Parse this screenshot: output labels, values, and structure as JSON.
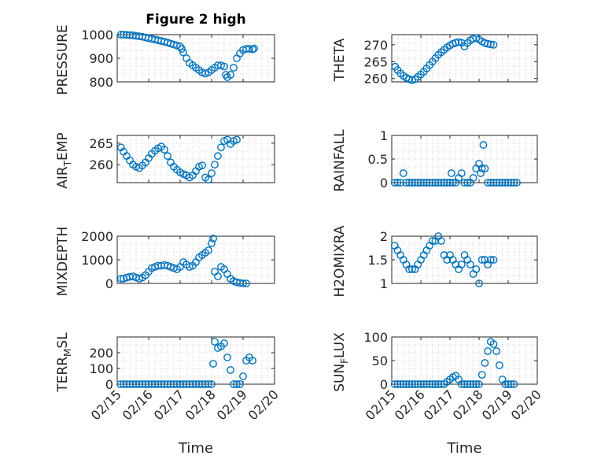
{
  "title": "Figure 2 high",
  "colors": {
    "marker": "#0072bd",
    "axis": "#262626",
    "grid": "#bdbdbd",
    "background": "#ffffff"
  },
  "chart_data": [
    {
      "type": "scatter",
      "ylabel": "PRESSURE",
      "title": "Figure 2 high",
      "xlim": [
        0,
        5
      ],
      "ylim": [
        800,
        1000
      ],
      "yticks": [
        800,
        900,
        1000
      ],
      "yticklabels": [
        "800",
        "900",
        "1000"
      ],
      "xticklabels": [],
      "xlabel": "",
      "grid": true,
      "points": [
        [
          0.12,
          1000
        ],
        [
          0.2,
          1000
        ],
        [
          0.3,
          999
        ],
        [
          0.4,
          998
        ],
        [
          0.5,
          997
        ],
        [
          0.6,
          995
        ],
        [
          0.7,
          993
        ],
        [
          0.8,
          991
        ],
        [
          0.9,
          988
        ],
        [
          1.0,
          985
        ],
        [
          1.1,
          982
        ],
        [
          1.2,
          979
        ],
        [
          1.3,
          976
        ],
        [
          1.4,
          973
        ],
        [
          1.5,
          970
        ],
        [
          1.6,
          966
        ],
        [
          1.7,
          962
        ],
        [
          1.8,
          958
        ],
        [
          1.9,
          954
        ],
        [
          2.0,
          950
        ],
        [
          2.05,
          940
        ],
        [
          2.1,
          925
        ],
        [
          2.2,
          900
        ],
        [
          2.3,
          880
        ],
        [
          2.4,
          870
        ],
        [
          2.5,
          860
        ],
        [
          2.6,
          850
        ],
        [
          2.7,
          840
        ],
        [
          2.8,
          835
        ],
        [
          2.9,
          840
        ],
        [
          3.0,
          850
        ],
        [
          3.1,
          860
        ],
        [
          3.2,
          870
        ],
        [
          3.3,
          870
        ],
        [
          3.4,
          865
        ],
        [
          3.45,
          830
        ],
        [
          3.5,
          820
        ],
        [
          3.6,
          830
        ],
        [
          3.7,
          860
        ],
        [
          3.8,
          900
        ],
        [
          3.9,
          920
        ],
        [
          4.0,
          935
        ],
        [
          4.1,
          940
        ],
        [
          4.2,
          940
        ],
        [
          4.3,
          938
        ],
        [
          4.35,
          941
        ]
      ]
    },
    {
      "type": "scatter",
      "ylabel": "THETA",
      "xlim": [
        0,
        5
      ],
      "ylim": [
        259,
        273
      ],
      "yticks": [
        260,
        265,
        270
      ],
      "yticklabels": [
        "260",
        "265",
        "270"
      ],
      "xticklabels": [],
      "xlabel": "",
      "grid": true,
      "points": [
        [
          0.12,
          263.5
        ],
        [
          0.2,
          262.5
        ],
        [
          0.3,
          261.5
        ],
        [
          0.4,
          260.8
        ],
        [
          0.5,
          260.2
        ],
        [
          0.6,
          259.8
        ],
        [
          0.7,
          259.5
        ],
        [
          0.8,
          259.8
        ],
        [
          0.9,
          260.5
        ],
        [
          1.0,
          261.2
        ],
        [
          1.1,
          262
        ],
        [
          1.2,
          263
        ],
        [
          1.3,
          264
        ],
        [
          1.4,
          265
        ],
        [
          1.5,
          266
        ],
        [
          1.6,
          267
        ],
        [
          1.7,
          267.8
        ],
        [
          1.8,
          268.5
        ],
        [
          1.9,
          269.2
        ],
        [
          2.0,
          269.8
        ],
        [
          2.1,
          270.3
        ],
        [
          2.2,
          270.6
        ],
        [
          2.3,
          270.8
        ],
        [
          2.4,
          270.6
        ],
        [
          2.5,
          269.5
        ],
        [
          2.6,
          270.5
        ],
        [
          2.7,
          271.3
        ],
        [
          2.8,
          271.8
        ],
        [
          2.9,
          272
        ],
        [
          3.0,
          271.6
        ],
        [
          3.1,
          271
        ],
        [
          3.2,
          270.5
        ],
        [
          3.3,
          270.3
        ],
        [
          3.4,
          270.1
        ],
        [
          3.5,
          270
        ]
      ]
    },
    {
      "type": "scatter",
      "ylabel": "AIR_TEMP",
      "xlim": [
        0,
        5
      ],
      "ylim": [
        255.8,
        266.8
      ],
      "yticks": [
        260,
        265
      ],
      "yticklabels": [
        "260",
        "265"
      ],
      "xticklabels": [],
      "xlabel": "",
      "grid": true,
      "points": [
        [
          0.12,
          264
        ],
        [
          0.2,
          263
        ],
        [
          0.3,
          262
        ],
        [
          0.4,
          261
        ],
        [
          0.5,
          260
        ],
        [
          0.6,
          259.5
        ],
        [
          0.7,
          259.2
        ],
        [
          0.8,
          259.8
        ],
        [
          0.9,
          260.5
        ],
        [
          1.0,
          261.5
        ],
        [
          1.1,
          262.5
        ],
        [
          1.2,
          263.2
        ],
        [
          1.3,
          263.8
        ],
        [
          1.4,
          264.2
        ],
        [
          1.5,
          263.5
        ],
        [
          1.6,
          262
        ],
        [
          1.7,
          260.5
        ],
        [
          1.8,
          259.5
        ],
        [
          1.9,
          258.8
        ],
        [
          2.0,
          258.2
        ],
        [
          2.1,
          257.8
        ],
        [
          2.2,
          257.5
        ],
        [
          2.3,
          257
        ],
        [
          2.4,
          257.5
        ],
        [
          2.5,
          258.5
        ],
        [
          2.6,
          259.5
        ],
        [
          2.7,
          259.8
        ],
        [
          2.8,
          257
        ],
        [
          2.9,
          256.5
        ],
        [
          3.0,
          258
        ],
        [
          3.1,
          260
        ],
        [
          3.2,
          262
        ],
        [
          3.3,
          264
        ],
        [
          3.4,
          265.5
        ],
        [
          3.5,
          265.8
        ],
        [
          3.6,
          264.8
        ],
        [
          3.7,
          265.5
        ],
        [
          3.8,
          265.8
        ]
      ]
    },
    {
      "type": "scatter",
      "ylabel": "RAINFALL",
      "xlim": [
        0,
        5
      ],
      "ylim": [
        0,
        1
      ],
      "yticks": [
        0,
        0.5,
        1
      ],
      "yticklabels": [
        "0",
        "0.5",
        "1"
      ],
      "xticklabels": [],
      "xlabel": "",
      "grid": true,
      "points": [
        [
          0.1,
          0
        ],
        [
          0.2,
          0
        ],
        [
          0.3,
          0
        ],
        [
          0.4,
          0.2
        ],
        [
          0.5,
          0
        ],
        [
          0.6,
          0
        ],
        [
          0.7,
          0
        ],
        [
          0.8,
          0
        ],
        [
          0.9,
          0
        ],
        [
          1.0,
          0
        ],
        [
          1.1,
          0
        ],
        [
          1.2,
          0
        ],
        [
          1.3,
          0
        ],
        [
          1.4,
          0
        ],
        [
          1.5,
          0
        ],
        [
          1.6,
          0
        ],
        [
          1.7,
          0
        ],
        [
          1.8,
          0
        ],
        [
          1.9,
          0
        ],
        [
          2.0,
          0
        ],
        [
          2.05,
          0.2
        ],
        [
          2.1,
          0
        ],
        [
          2.2,
          0
        ],
        [
          2.3,
          0.1
        ],
        [
          2.4,
          0.2
        ],
        [
          2.5,
          0
        ],
        [
          2.6,
          0
        ],
        [
          2.7,
          0
        ],
        [
          2.8,
          0.1
        ],
        [
          2.9,
          0.3
        ],
        [
          3.0,
          0.4
        ],
        [
          3.05,
          0.2
        ],
        [
          3.1,
          0.3
        ],
        [
          3.15,
          0.8
        ],
        [
          3.2,
          0.3
        ],
        [
          3.3,
          0
        ],
        [
          3.4,
          0
        ],
        [
          3.5,
          0
        ],
        [
          3.6,
          0
        ],
        [
          3.7,
          0
        ],
        [
          3.8,
          0
        ],
        [
          3.9,
          0
        ],
        [
          4.0,
          0
        ],
        [
          4.1,
          0
        ],
        [
          4.2,
          0
        ],
        [
          4.3,
          0
        ]
      ]
    },
    {
      "type": "scatter",
      "ylabel": "MIXDEPTH",
      "xlim": [
        0,
        5
      ],
      "ylim": [
        0,
        2000
      ],
      "yticks": [
        0,
        1000,
        2000
      ],
      "yticklabels": [
        "0",
        "1000",
        "2000"
      ],
      "xticklabels": [],
      "xlabel": "",
      "grid": true,
      "points": [
        [
          0.12,
          200
        ],
        [
          0.2,
          200
        ],
        [
          0.3,
          250
        ],
        [
          0.4,
          280
        ],
        [
          0.5,
          300
        ],
        [
          0.6,
          250
        ],
        [
          0.7,
          200
        ],
        [
          0.8,
          250
        ],
        [
          0.9,
          350
        ],
        [
          1.0,
          500
        ],
        [
          1.1,
          650
        ],
        [
          1.2,
          700
        ],
        [
          1.3,
          750
        ],
        [
          1.4,
          750
        ],
        [
          1.5,
          780
        ],
        [
          1.6,
          750
        ],
        [
          1.7,
          700
        ],
        [
          1.8,
          650
        ],
        [
          1.9,
          600
        ],
        [
          2.0,
          700
        ],
        [
          2.1,
          900
        ],
        [
          2.2,
          800
        ],
        [
          2.3,
          700
        ],
        [
          2.4,
          750
        ],
        [
          2.5,
          900
        ],
        [
          2.6,
          1100
        ],
        [
          2.7,
          1200
        ],
        [
          2.8,
          1300
        ],
        [
          2.9,
          1400
        ],
        [
          3.0,
          1700
        ],
        [
          3.05,
          1900
        ],
        [
          3.1,
          500
        ],
        [
          3.2,
          300
        ],
        [
          3.3,
          700
        ],
        [
          3.4,
          600
        ],
        [
          3.5,
          400
        ],
        [
          3.6,
          200
        ],
        [
          3.7,
          100
        ],
        [
          3.8,
          50
        ],
        [
          3.9,
          20
        ],
        [
          4.0,
          0
        ],
        [
          4.1,
          0
        ]
      ]
    },
    {
      "type": "scatter",
      "ylabel": "H2OMIXRA",
      "xlim": [
        0,
        5
      ],
      "ylim": [
        1,
        2
      ],
      "yticks": [
        1,
        1.5,
        2
      ],
      "yticklabels": [
        "1",
        "1.5",
        "2"
      ],
      "xticklabels": [],
      "xlabel": "",
      "grid": true,
      "points": [
        [
          0.1,
          1.8
        ],
        [
          0.2,
          1.7
        ],
        [
          0.3,
          1.6
        ],
        [
          0.4,
          1.5
        ],
        [
          0.5,
          1.4
        ],
        [
          0.6,
          1.3
        ],
        [
          0.7,
          1.3
        ],
        [
          0.8,
          1.3
        ],
        [
          0.9,
          1.4
        ],
        [
          1.0,
          1.5
        ],
        [
          1.1,
          1.6
        ],
        [
          1.2,
          1.7
        ],
        [
          1.3,
          1.8
        ],
        [
          1.4,
          1.9
        ],
        [
          1.5,
          1.9
        ],
        [
          1.6,
          2.0
        ],
        [
          1.7,
          1.9
        ],
        [
          1.8,
          1.6
        ],
        [
          1.9,
          1.5
        ],
        [
          2.0,
          1.6
        ],
        [
          2.1,
          1.5
        ],
        [
          2.2,
          1.4
        ],
        [
          2.3,
          1.3
        ],
        [
          2.4,
          1.4
        ],
        [
          2.5,
          1.6
        ],
        [
          2.6,
          1.5
        ],
        [
          2.7,
          1.4
        ],
        [
          2.8,
          1.2
        ],
        [
          2.9,
          1.3
        ],
        [
          3.0,
          1.0
        ],
        [
          3.1,
          1.5
        ],
        [
          3.2,
          1.5
        ],
        [
          3.3,
          1.4
        ],
        [
          3.4,
          1.5
        ],
        [
          3.5,
          1.5
        ]
      ]
    },
    {
      "type": "scatter",
      "ylabel": "TERR_MSL",
      "xlim": [
        0,
        5
      ],
      "ylim": [
        0,
        300
      ],
      "yticks": [
        0,
        100,
        200
      ],
      "yticklabels": [
        "0",
        "100",
        "200"
      ],
      "xticks": [
        0,
        1,
        2,
        3,
        4,
        5
      ],
      "xticklabels": [
        "02/15",
        "02/16",
        "02/17",
        "02/18",
        "02/19",
        "02/20"
      ],
      "xlabel": "Time",
      "grid": true,
      "points": [
        [
          0.1,
          0
        ],
        [
          0.2,
          0
        ],
        [
          0.3,
          0
        ],
        [
          0.4,
          0
        ],
        [
          0.5,
          0
        ],
        [
          0.6,
          0
        ],
        [
          0.7,
          0
        ],
        [
          0.8,
          0
        ],
        [
          0.9,
          0
        ],
        [
          1.0,
          0
        ],
        [
          1.1,
          0
        ],
        [
          1.2,
          0
        ],
        [
          1.3,
          0
        ],
        [
          1.4,
          0
        ],
        [
          1.5,
          0
        ],
        [
          1.6,
          0
        ],
        [
          1.7,
          0
        ],
        [
          1.8,
          0
        ],
        [
          1.9,
          0
        ],
        [
          2.0,
          0
        ],
        [
          2.1,
          0
        ],
        [
          2.2,
          0
        ],
        [
          2.3,
          0
        ],
        [
          2.4,
          0
        ],
        [
          2.5,
          0
        ],
        [
          2.6,
          0
        ],
        [
          2.7,
          0
        ],
        [
          2.8,
          0
        ],
        [
          2.9,
          0
        ],
        [
          3.0,
          0
        ],
        [
          3.05,
          130
        ],
        [
          3.1,
          270
        ],
        [
          3.2,
          230
        ],
        [
          3.3,
          240
        ],
        [
          3.4,
          260
        ],
        [
          3.5,
          170
        ],
        [
          3.6,
          90
        ],
        [
          3.7,
          0
        ],
        [
          3.8,
          0
        ],
        [
          3.9,
          0
        ],
        [
          4.0,
          50
        ],
        [
          4.1,
          150
        ],
        [
          4.2,
          170
        ],
        [
          4.3,
          150
        ]
      ]
    },
    {
      "type": "scatter",
      "ylabel": "SUN_FLUX",
      "xlim": [
        0,
        5
      ],
      "ylim": [
        0,
        100
      ],
      "yticks": [
        0,
        50,
        100
      ],
      "yticklabels": [
        "0",
        "50",
        "100"
      ],
      "xticks": [
        0,
        1,
        2,
        3,
        4,
        5
      ],
      "xticklabels": [
        "02/15",
        "02/16",
        "02/17",
        "02/18",
        "02/19",
        "02/20"
      ],
      "xlabel": "Time",
      "grid": true,
      "points": [
        [
          0.1,
          0
        ],
        [
          0.2,
          0
        ],
        [
          0.3,
          0
        ],
        [
          0.4,
          0
        ],
        [
          0.5,
          0
        ],
        [
          0.6,
          0
        ],
        [
          0.7,
          0
        ],
        [
          0.8,
          0
        ],
        [
          0.9,
          0
        ],
        [
          1.0,
          0
        ],
        [
          1.1,
          0
        ],
        [
          1.2,
          0
        ],
        [
          1.3,
          0
        ],
        [
          1.4,
          0
        ],
        [
          1.5,
          0
        ],
        [
          1.6,
          0
        ],
        [
          1.7,
          0
        ],
        [
          1.8,
          0
        ],
        [
          1.9,
          5
        ],
        [
          2.0,
          10
        ],
        [
          2.1,
          15
        ],
        [
          2.2,
          18
        ],
        [
          2.3,
          10
        ],
        [
          2.4,
          0
        ],
        [
          2.5,
          0
        ],
        [
          2.6,
          0
        ],
        [
          2.7,
          0
        ],
        [
          2.8,
          0
        ],
        [
          2.9,
          0
        ],
        [
          3.0,
          0
        ],
        [
          3.1,
          20
        ],
        [
          3.2,
          45
        ],
        [
          3.3,
          70
        ],
        [
          3.4,
          90
        ],
        [
          3.5,
          85
        ],
        [
          3.6,
          70
        ],
        [
          3.7,
          40
        ],
        [
          3.8,
          10
        ],
        [
          3.9,
          0
        ],
        [
          4.0,
          0
        ],
        [
          4.1,
          0
        ],
        [
          4.2,
          0
        ]
      ]
    }
  ]
}
